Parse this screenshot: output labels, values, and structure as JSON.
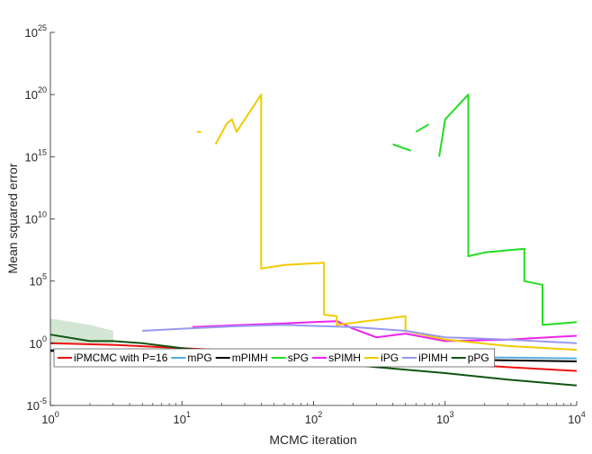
{
  "chart_data": {
    "type": "line",
    "xlabel": "MCMC iteration",
    "ylabel": "Mean squared error",
    "xscale": "log",
    "yscale": "log",
    "xlim": [
      1,
      10000
    ],
    "ylim": [
      1e-05,
      1e+25
    ],
    "x_ticks": [
      {
        "base": "10",
        "exp": "0",
        "value": 1
      },
      {
        "base": "10",
        "exp": "1",
        "value": 10
      },
      {
        "base": "10",
        "exp": "2",
        "value": 100
      },
      {
        "base": "10",
        "exp": "3",
        "value": 1000
      },
      {
        "base": "10",
        "exp": "4",
        "value": 10000
      }
    ],
    "y_ticks": [
      {
        "base": "10",
        "exp": "-5",
        "value": 1e-05
      },
      {
        "base": "10",
        "exp": "0",
        "value": 1
      },
      {
        "base": "10",
        "exp": "5",
        "value": 100000.0
      },
      {
        "base": "10",
        "exp": "10",
        "value": 10000000000.0
      },
      {
        "base": "10",
        "exp": "15",
        "value": 1000000000000000.0
      },
      {
        "base": "10",
        "exp": "20",
        "value": 1e+20
      },
      {
        "base": "10",
        "exp": "25",
        "value": 1e+25
      }
    ],
    "grid": false,
    "legend_position": "bottom-left",
    "band": {
      "color": "#c8dec8",
      "x": [
        1,
        2,
        3,
        3,
        2,
        1
      ],
      "y": [
        100,
        30,
        10,
        1,
        1,
        1
      ]
    },
    "series": [
      {
        "name": "iPMCMC with P=16",
        "color": "#ee1111",
        "segments": [
          {
            "x": [
              1,
              3,
              10,
              30,
              100,
              300,
              1000,
              3000,
              10000
            ],
            "y": [
              1,
              0.75,
              0.4,
              0.22,
              0.12,
              0.06,
              0.025,
              0.012,
              0.006
            ]
          }
        ]
      },
      {
        "name": "mPG",
        "color": "#55aadd",
        "segments": [
          {
            "x": [
              1,
              10,
              100,
              1000,
              10000
            ],
            "y": [
              0.3,
              0.2,
              0.12,
              0.08,
              0.06
            ]
          }
        ]
      },
      {
        "name": "mPIMH",
        "color": "#000000",
        "segments": [
          {
            "x": [
              1,
              10,
              100,
              1000,
              10000
            ],
            "y": [
              0.25,
              0.15,
              0.09,
              0.05,
              0.035
            ]
          }
        ]
      },
      {
        "name": "sPG",
        "color": "#22dd22",
        "segments": [
          {
            "x": [
              400,
              550
            ],
            "y": [
              1e+16,
              3000000000000000.0
            ]
          },
          {
            "x": [
              600,
              750
            ],
            "y": [
              1e+17,
              4e+17
            ]
          },
          {
            "x": [
              900,
              1000,
              1500,
              1500,
              2000,
              4000,
              4000,
              5500,
              5500,
              10000
            ],
            "y": [
              1000000000000000.0,
              1e+18,
              1e+20,
              10000000.0,
              20000000.0,
              40000000.0,
              100000.0,
              50000.0,
              30,
              50
            ]
          }
        ]
      },
      {
        "name": "sPIMH",
        "color": "#ee22ee",
        "segments": [
          {
            "x": [
              12,
              30,
              60,
              100,
              150,
              200,
              300,
              500,
              1000,
              3000,
              10000
            ],
            "y": [
              20,
              30,
              40,
              50,
              60,
              15,
              3,
              6,
              1.5,
              2,
              4
            ]
          }
        ]
      },
      {
        "name": "iPG",
        "color": "#f0cc00",
        "segments": [
          {
            "x": [
              13,
              14
            ],
            "y": [
              1e+17,
              1e+17
            ]
          },
          {
            "x": [
              18,
              22,
              24,
              26,
              40,
              40,
              60,
              120,
              120,
              150,
              150,
              500,
              500,
              1000,
              3000,
              10000
            ],
            "y": [
              1e+16,
              5e+17,
              1e+18,
              1e+17,
              1e+20,
              1000000.0,
              2000000.0,
              3000000.0,
              200,
              150,
              30,
              150,
              10,
              2,
              0.6,
              0.3
            ]
          }
        ]
      },
      {
        "name": "iPIMH",
        "color": "#9999ee",
        "segments": [
          {
            "x": [
              5,
              10,
              30,
              60,
              100,
              200,
              500,
              1000,
              3000,
              10000
            ],
            "y": [
              10,
              15,
              25,
              30,
              25,
              20,
              10,
              3,
              2,
              1
            ]
          }
        ]
      },
      {
        "name": "pPG",
        "color": "#115511",
        "segments": [
          {
            "x": [
              1,
              2,
              3,
              5,
              10,
              30,
              100,
              300,
              1000,
              3000,
              10000
            ],
            "y": [
              5,
              1.5,
              1.5,
              1,
              0.4,
              0.12,
              0.04,
              0.012,
              0.004,
              0.0012,
              0.0004
            ]
          }
        ]
      }
    ]
  }
}
